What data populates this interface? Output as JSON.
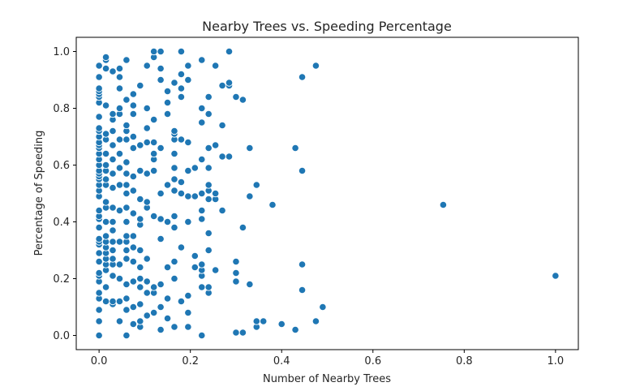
{
  "chart_data": {
    "type": "scatter",
    "title": "Nearby Trees vs. Speeding Percentage",
    "xlabel": "Number of Nearby Trees",
    "ylabel": "Percentage of Speeding",
    "xlim": [
      -0.05,
      1.05
    ],
    "ylim": [
      -0.05,
      1.05
    ],
    "xticks": [
      "0.0",
      "0.2",
      "0.4",
      "0.6",
      "0.8",
      "1.0"
    ],
    "yticks": [
      "0.0",
      "0.2",
      "0.4",
      "0.6",
      "0.8",
      "1.0"
    ],
    "xtick_values": [
      0.0,
      0.2,
      0.4,
      0.6,
      0.8,
      1.0
    ],
    "ytick_values": [
      0.0,
      0.2,
      0.4,
      0.6,
      0.8,
      1.0
    ],
    "grid": false,
    "marker_color": "#1f77b4",
    "points": [
      [
        0.0,
        0.0
      ],
      [
        0.0,
        0.05
      ],
      [
        0.0,
        0.09
      ],
      [
        0.0,
        0.13
      ],
      [
        0.0,
        0.15
      ],
      [
        0.0,
        0.19
      ],
      [
        0.0,
        0.21
      ],
      [
        0.0,
        0.22
      ],
      [
        0.0,
        0.26
      ],
      [
        0.0,
        0.29
      ],
      [
        0.0,
        0.32
      ],
      [
        0.0,
        0.33
      ],
      [
        0.0,
        0.34
      ],
      [
        0.0,
        0.38
      ],
      [
        0.0,
        0.41
      ],
      [
        0.0,
        0.42
      ],
      [
        0.0,
        0.44
      ],
      [
        0.0,
        0.49
      ],
      [
        0.0,
        0.51
      ],
      [
        0.0,
        0.53
      ],
      [
        0.0,
        0.55
      ],
      [
        0.0,
        0.56
      ],
      [
        0.0,
        0.57
      ],
      [
        0.0,
        0.58
      ],
      [
        0.0,
        0.6
      ],
      [
        0.0,
        0.62
      ],
      [
        0.0,
        0.64
      ],
      [
        0.0,
        0.66
      ],
      [
        0.0,
        0.67
      ],
      [
        0.0,
        0.68
      ],
      [
        0.0,
        0.7
      ],
      [
        0.0,
        0.72
      ],
      [
        0.0,
        0.73
      ],
      [
        0.0,
        0.77
      ],
      [
        0.0,
        0.82
      ],
      [
        0.0,
        0.84
      ],
      [
        0.0,
        0.85
      ],
      [
        0.0,
        0.86
      ],
      [
        0.0,
        0.87
      ],
      [
        0.0,
        0.91
      ],
      [
        0.0,
        0.95
      ],
      [
        0.015,
        0.12
      ],
      [
        0.015,
        0.17
      ],
      [
        0.015,
        0.23
      ],
      [
        0.015,
        0.25
      ],
      [
        0.015,
        0.27
      ],
      [
        0.015,
        0.29
      ],
      [
        0.015,
        0.31
      ],
      [
        0.015,
        0.33
      ],
      [
        0.015,
        0.35
      ],
      [
        0.015,
        0.4
      ],
      [
        0.015,
        0.45
      ],
      [
        0.015,
        0.47
      ],
      [
        0.015,
        0.53
      ],
      [
        0.015,
        0.55
      ],
      [
        0.015,
        0.58
      ],
      [
        0.015,
        0.6
      ],
      [
        0.015,
        0.64
      ],
      [
        0.015,
        0.69
      ],
      [
        0.015,
        0.71
      ],
      [
        0.015,
        0.81
      ],
      [
        0.015,
        0.94
      ],
      [
        0.015,
        0.97
      ],
      [
        0.015,
        0.98
      ],
      [
        0.03,
        0.11
      ],
      [
        0.03,
        0.12
      ],
      [
        0.03,
        0.21
      ],
      [
        0.03,
        0.25
      ],
      [
        0.03,
        0.27
      ],
      [
        0.03,
        0.3
      ],
      [
        0.03,
        0.33
      ],
      [
        0.03,
        0.37
      ],
      [
        0.03,
        0.4
      ],
      [
        0.03,
        0.45
      ],
      [
        0.03,
        0.52
      ],
      [
        0.03,
        0.57
      ],
      [
        0.03,
        0.62
      ],
      [
        0.03,
        0.67
      ],
      [
        0.03,
        0.72
      ],
      [
        0.03,
        0.76
      ],
      [
        0.03,
        0.78
      ],
      [
        0.03,
        0.93
      ],
      [
        0.045,
        0.05
      ],
      [
        0.045,
        0.12
      ],
      [
        0.045,
        0.2
      ],
      [
        0.045,
        0.25
      ],
      [
        0.045,
        0.33
      ],
      [
        0.045,
        0.44
      ],
      [
        0.045,
        0.53
      ],
      [
        0.045,
        0.59
      ],
      [
        0.045,
        0.64
      ],
      [
        0.045,
        0.69
      ],
      [
        0.045,
        0.78
      ],
      [
        0.045,
        0.8
      ],
      [
        0.045,
        0.87
      ],
      [
        0.045,
        0.91
      ],
      [
        0.045,
        0.94
      ],
      [
        0.06,
        0.0
      ],
      [
        0.06,
        0.09
      ],
      [
        0.06,
        0.13
      ],
      [
        0.06,
        0.18
      ],
      [
        0.06,
        0.27
      ],
      [
        0.06,
        0.3
      ],
      [
        0.06,
        0.33
      ],
      [
        0.06,
        0.35
      ],
      [
        0.06,
        0.4
      ],
      [
        0.06,
        0.45
      ],
      [
        0.06,
        0.5
      ],
      [
        0.06,
        0.53
      ],
      [
        0.06,
        0.57
      ],
      [
        0.06,
        0.61
      ],
      [
        0.06,
        0.69
      ],
      [
        0.06,
        0.72
      ],
      [
        0.06,
        0.74
      ],
      [
        0.06,
        0.83
      ],
      [
        0.06,
        0.97
      ],
      [
        0.075,
        0.04
      ],
      [
        0.075,
        0.1
      ],
      [
        0.075,
        0.19
      ],
      [
        0.075,
        0.26
      ],
      [
        0.075,
        0.31
      ],
      [
        0.075,
        0.35
      ],
      [
        0.075,
        0.43
      ],
      [
        0.075,
        0.51
      ],
      [
        0.075,
        0.56
      ],
      [
        0.075,
        0.66
      ],
      [
        0.075,
        0.7
      ],
      [
        0.075,
        0.78
      ],
      [
        0.075,
        0.81
      ],
      [
        0.075,
        0.85
      ],
      [
        0.09,
        0.03
      ],
      [
        0.09,
        0.05
      ],
      [
        0.09,
        0.11
      ],
      [
        0.09,
        0.17
      ],
      [
        0.09,
        0.2
      ],
      [
        0.09,
        0.24
      ],
      [
        0.09,
        0.3
      ],
      [
        0.09,
        0.39
      ],
      [
        0.09,
        0.41
      ],
      [
        0.09,
        0.48
      ],
      [
        0.09,
        0.58
      ],
      [
        0.09,
        0.67
      ],
      [
        0.09,
        0.88
      ],
      [
        0.105,
        0.07
      ],
      [
        0.105,
        0.15
      ],
      [
        0.105,
        0.19
      ],
      [
        0.105,
        0.27
      ],
      [
        0.105,
        0.45
      ],
      [
        0.105,
        0.47
      ],
      [
        0.105,
        0.57
      ],
      [
        0.105,
        0.68
      ],
      [
        0.105,
        0.73
      ],
      [
        0.105,
        0.8
      ],
      [
        0.105,
        0.95
      ],
      [
        0.12,
        0.08
      ],
      [
        0.12,
        0.15
      ],
      [
        0.12,
        0.17
      ],
      [
        0.12,
        0.42
      ],
      [
        0.12,
        0.58
      ],
      [
        0.12,
        0.62
      ],
      [
        0.12,
        0.64
      ],
      [
        0.12,
        0.68
      ],
      [
        0.12,
        0.76
      ],
      [
        0.12,
        0.98
      ],
      [
        0.12,
        1.0
      ],
      [
        0.135,
        0.02
      ],
      [
        0.135,
        0.1
      ],
      [
        0.135,
        0.18
      ],
      [
        0.135,
        0.34
      ],
      [
        0.135,
        0.41
      ],
      [
        0.135,
        0.5
      ],
      [
        0.135,
        0.66
      ],
      [
        0.135,
        0.9
      ],
      [
        0.135,
        0.94
      ],
      [
        0.135,
        1.0
      ],
      [
        0.15,
        0.06
      ],
      [
        0.15,
        0.13
      ],
      [
        0.15,
        0.24
      ],
      [
        0.15,
        0.4
      ],
      [
        0.15,
        0.53
      ],
      [
        0.15,
        0.78
      ],
      [
        0.15,
        0.82
      ],
      [
        0.15,
        0.86
      ],
      [
        0.165,
        0.03
      ],
      [
        0.165,
        0.2
      ],
      [
        0.165,
        0.26
      ],
      [
        0.165,
        0.38
      ],
      [
        0.165,
        0.42
      ],
      [
        0.165,
        0.51
      ],
      [
        0.165,
        0.55
      ],
      [
        0.165,
        0.59
      ],
      [
        0.165,
        0.64
      ],
      [
        0.165,
        0.69
      ],
      [
        0.165,
        0.71
      ],
      [
        0.165,
        0.72
      ],
      [
        0.165,
        0.89
      ],
      [
        0.18,
        0.12
      ],
      [
        0.18,
        0.31
      ],
      [
        0.18,
        0.5
      ],
      [
        0.18,
        0.54
      ],
      [
        0.18,
        0.69
      ],
      [
        0.18,
        0.84
      ],
      [
        0.18,
        0.87
      ],
      [
        0.18,
        0.92
      ],
      [
        0.18,
        1.0
      ],
      [
        0.195,
        0.03
      ],
      [
        0.195,
        0.08
      ],
      [
        0.195,
        0.14
      ],
      [
        0.195,
        0.4
      ],
      [
        0.195,
        0.49
      ],
      [
        0.195,
        0.58
      ],
      [
        0.195,
        0.68
      ],
      [
        0.195,
        0.9
      ],
      [
        0.195,
        0.95
      ],
      [
        0.21,
        0.24
      ],
      [
        0.21,
        0.28
      ],
      [
        0.21,
        0.49
      ],
      [
        0.21,
        0.59
      ],
      [
        0.225,
        0.0
      ],
      [
        0.225,
        0.17
      ],
      [
        0.225,
        0.21
      ],
      [
        0.225,
        0.23
      ],
      [
        0.225,
        0.25
      ],
      [
        0.225,
        0.41
      ],
      [
        0.225,
        0.44
      ],
      [
        0.225,
        0.5
      ],
      [
        0.225,
        0.62
      ],
      [
        0.225,
        0.75
      ],
      [
        0.225,
        0.8
      ],
      [
        0.225,
        0.97
      ],
      [
        0.24,
        0.15
      ],
      [
        0.24,
        0.17
      ],
      [
        0.24,
        0.3
      ],
      [
        0.24,
        0.36
      ],
      [
        0.24,
        0.48
      ],
      [
        0.24,
        0.51
      ],
      [
        0.24,
        0.53
      ],
      [
        0.24,
        0.59
      ],
      [
        0.24,
        0.66
      ],
      [
        0.24,
        0.78
      ],
      [
        0.24,
        0.84
      ],
      [
        0.255,
        0.23
      ],
      [
        0.255,
        0.48
      ],
      [
        0.255,
        0.5
      ],
      [
        0.255,
        0.67
      ],
      [
        0.255,
        0.95
      ],
      [
        0.27,
        0.44
      ],
      [
        0.27,
        0.63
      ],
      [
        0.27,
        0.74
      ],
      [
        0.27,
        0.88
      ],
      [
        0.285,
        0.63
      ],
      [
        0.285,
        0.88
      ],
      [
        0.285,
        0.89
      ],
      [
        0.285,
        1.0
      ],
      [
        0.3,
        0.01
      ],
      [
        0.3,
        0.19
      ],
      [
        0.3,
        0.22
      ],
      [
        0.3,
        0.26
      ],
      [
        0.3,
        0.84
      ],
      [
        0.315,
        0.01
      ],
      [
        0.315,
        0.38
      ],
      [
        0.315,
        0.83
      ],
      [
        0.33,
        0.18
      ],
      [
        0.33,
        0.49
      ],
      [
        0.33,
        0.66
      ],
      [
        0.345,
        0.03
      ],
      [
        0.345,
        0.05
      ],
      [
        0.345,
        0.53
      ],
      [
        0.36,
        0.05
      ],
      [
        0.38,
        0.46
      ],
      [
        0.4,
        0.04
      ],
      [
        0.43,
        0.02
      ],
      [
        0.43,
        0.66
      ],
      [
        0.445,
        0.16
      ],
      [
        0.445,
        0.25
      ],
      [
        0.445,
        0.58
      ],
      [
        0.445,
        0.91
      ],
      [
        0.475,
        0.05
      ],
      [
        0.475,
        0.95
      ],
      [
        0.49,
        0.1
      ],
      [
        0.754,
        0.46
      ],
      [
        1.0,
        0.21
      ]
    ]
  }
}
